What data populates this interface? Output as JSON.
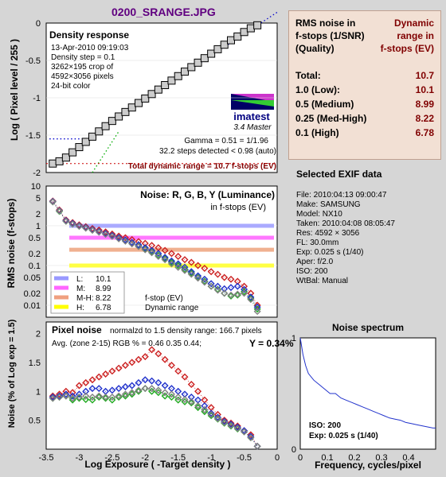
{
  "header": {
    "filename": "0200_SRANGE.JPG"
  },
  "density_panel": {
    "title": "Density response",
    "info_lines": [
      "13-Apr-2010 09:19:03",
      "Density step = 0.1",
      "3262×195 crop of",
      "4592×3056 pixels",
      "24-bit color"
    ],
    "gamma_line": "Gamma = 0.51 = 1/1.96",
    "steps_line": "32.2 steps detected < 0.98 (auto)",
    "total_line": "Total dynamic range = 10.7 f-stops (EV)",
    "logo_text": "imatest",
    "logo_version": "3.4  Master"
  },
  "noise_panel": {
    "title": "Noise: R, G, B, Y (Luminance)",
    "subtitle": "in f-stops (EV)",
    "legend": [
      {
        "key": "L:",
        "value": "10.1",
        "color": "#9999ff"
      },
      {
        "key": "M:",
        "value": "8.99",
        "color": "#ff66ff"
      },
      {
        "key": "M-H:",
        "value": "8.22",
        "color": "#f0a080"
      },
      {
        "key": "H:",
        "value": "6.78",
        "color": "#ffff00"
      }
    ],
    "legend_note1": "f-stop (EV)",
    "legend_note2": "Dynamic range"
  },
  "pixel_panel": {
    "title": "Pixel noise",
    "norm_line": "normalzd to 1.5 density range: 166.7 pixels",
    "avg_line": "Avg. (zone 2-15) RGB % = 0.46  0.35  0.44;",
    "y_line": "Y = 0.34%"
  },
  "spectrum_panel": {
    "title": "Noise spectrum",
    "iso_line": "ISO:   200",
    "exp_line": "Exp:  0.025 s  (1/40)"
  },
  "rms_table": {
    "header_left": [
      "RMS noise in",
      "f-stops (1/SNR)",
      "(Quality)"
    ],
    "header_right": [
      "Dynamic",
      "range in",
      "f-stops (EV)"
    ],
    "rows": [
      {
        "label": "Total:",
        "value": "10.7"
      },
      {
        "label": "1.0   (Low):",
        "value": "10.1"
      },
      {
        "label": "0.5  (Medium)",
        "value": "8.99"
      },
      {
        "label": "0.25 (Med-High)",
        "value": "8.22"
      },
      {
        "label": "0.1   (High)",
        "value": "6.78"
      }
    ]
  },
  "exif": {
    "title": "Selected EXIF data",
    "lines": [
      "File:  2010:04:13 09:00:47",
      "Make:  SAMSUNG",
      "Model: NX10",
      "Taken:  2010:04:08 08:05:47",
      "Res:    4592 × 3056",
      "FL:  30.0mm",
      "Exp:  0.025 s  (1/40)",
      "Aper:  f/2.0",
      "ISO:   200",
      "WtBal: Manual"
    ]
  },
  "chart_data": [
    {
      "type": "line",
      "title": "Density response",
      "ylabel": "Log ( Pixel level / 255 )",
      "xlim": [
        -3.5,
        0
      ],
      "ylim": [
        -2,
        0
      ],
      "yticks": [
        "0",
        "-0.5",
        "-1",
        "-1.5",
        "-2"
      ],
      "series": [
        {
          "x": [
            -3.4,
            -3.3,
            -3.2,
            -3.1,
            -3.0,
            -2.9,
            -2.8,
            -2.7,
            -2.6,
            -2.5,
            -2.4,
            -2.3,
            -2.2,
            -2.1,
            -2.0,
            -1.9,
            -1.8,
            -1.7,
            -1.6,
            -1.5,
            -1.4,
            -1.3,
            -1.2,
            -1.1,
            -1.0,
            -0.9,
            -0.8,
            -0.7,
            -0.6,
            -0.5,
            -0.4,
            -0.3
          ],
          "values": [
            -1.88,
            -1.85,
            -1.8,
            -1.73,
            -1.66,
            -1.59,
            -1.52,
            -1.45,
            -1.38,
            -1.31,
            -1.25,
            -1.19,
            -1.13,
            -1.07,
            -1.01,
            -0.95,
            -0.89,
            -0.83,
            -0.77,
            -0.71,
            -0.65,
            -0.59,
            -0.53,
            -0.47,
            -0.41,
            -0.35,
            -0.29,
            -0.23,
            -0.18,
            -0.12,
            -0.07,
            -0.03
          ]
        }
      ]
    },
    {
      "type": "line",
      "title": "Noise: R, G, B, Y (Luminance)",
      "ylabel": "RMS noise (f-stops)",
      "yscale": "log",
      "ylim": [
        0.005,
        10
      ],
      "yticks": [
        10,
        5,
        2,
        1,
        0.5,
        0.2,
        0.1,
        0.05,
        0.02,
        0.01
      ],
      "ytick_labels": [
        "10",
        "5",
        "2",
        "1",
        "0.5",
        "0.2",
        "0.1",
        "0.05",
        "0.02",
        "0.01"
      ],
      "x": [
        -3.4,
        -3.3,
        -3.2,
        -3.1,
        -3.0,
        -2.9,
        -2.8,
        -2.7,
        -2.6,
        -2.5,
        -2.4,
        -2.3,
        -2.2,
        -2.1,
        -2.0,
        -1.9,
        -1.8,
        -1.7,
        -1.6,
        -1.5,
        -1.4,
        -1.3,
        -1.2,
        -1.1,
        -1.0,
        -0.9,
        -0.8,
        -0.7,
        -0.6,
        -0.5,
        -0.4,
        -0.3
      ],
      "series": [
        {
          "color": "#cc2222",
          "values": [
            4.2,
            2.5,
            1.4,
            1.2,
            1.05,
            0.95,
            0.85,
            0.78,
            0.7,
            0.62,
            0.55,
            0.5,
            0.45,
            0.4,
            0.36,
            0.32,
            0.28,
            0.24,
            0.2,
            0.17,
            0.14,
            0.12,
            0.1,
            0.085,
            0.07,
            0.06,
            0.05,
            0.045,
            0.04,
            0.03,
            0.02,
            0.01
          ]
        },
        {
          "color": "#22aa22",
          "values": [
            4.0,
            2.3,
            1.3,
            1.1,
            0.98,
            0.88,
            0.78,
            0.7,
            0.62,
            0.55,
            0.48,
            0.42,
            0.36,
            0.31,
            0.26,
            0.22,
            0.18,
            0.15,
            0.12,
            0.1,
            0.08,
            0.065,
            0.05,
            0.04,
            0.03,
            0.025,
            0.02,
            0.017,
            0.018,
            0.022,
            0.015,
            0.008
          ]
        },
        {
          "color": "#2233cc",
          "values": [
            4.1,
            2.4,
            1.35,
            1.15,
            1.0,
            0.9,
            0.8,
            0.72,
            0.64,
            0.57,
            0.5,
            0.44,
            0.38,
            0.33,
            0.28,
            0.24,
            0.2,
            0.16,
            0.13,
            0.11,
            0.09,
            0.07,
            0.055,
            0.045,
            0.035,
            0.03,
            0.026,
            0.028,
            0.03,
            0.025,
            0.016,
            0.009
          ]
        },
        {
          "color": "#808080",
          "values": [
            4.0,
            2.35,
            1.3,
            1.1,
            0.97,
            0.87,
            0.77,
            0.69,
            0.61,
            0.54,
            0.47,
            0.41,
            0.35,
            0.3,
            0.25,
            0.21,
            0.17,
            0.14,
            0.11,
            0.09,
            0.075,
            0.06,
            0.048,
            0.038,
            0.03,
            0.024,
            0.02,
            0.018,
            0.019,
            0.02,
            0.014,
            0.007
          ]
        }
      ],
      "thresholds": [
        {
          "value": 1.0,
          "color": "#aaaaff"
        },
        {
          "value": 0.5,
          "color": "#ff77ff"
        },
        {
          "value": 0.25,
          "color": "#f0b090"
        },
        {
          "value": 0.1,
          "color": "#ffff44"
        }
      ]
    },
    {
      "type": "line",
      "title": "Pixel noise",
      "xlabel": "Log Exposure ( -Target density )",
      "ylabel": "Noise (% of Log exp = 1.5)",
      "xlim": [
        -3.5,
        0
      ],
      "ylim": [
        0,
        2.2
      ],
      "xticks": [
        -3.5,
        -3,
        -2.5,
        -2,
        -1.5,
        -1,
        -0.5,
        0
      ],
      "xtick_labels": [
        "-3.5",
        "-3",
        "-2.5",
        "-2",
        "-1.5",
        "-1",
        "-0.5",
        "0"
      ],
      "yticks": [
        0.5,
        1,
        1.5,
        2
      ],
      "ytick_labels": [
        "0.5",
        "1",
        "1.5",
        "2"
      ],
      "x": [
        -3.4,
        -3.3,
        -3.2,
        -3.1,
        -3.0,
        -2.9,
        -2.8,
        -2.7,
        -2.6,
        -2.5,
        -2.4,
        -2.3,
        -2.2,
        -2.1,
        -2.0,
        -1.9,
        -1.8,
        -1.7,
        -1.6,
        -1.5,
        -1.4,
        -1.3,
        -1.2,
        -1.1,
        -1.0,
        -0.9,
        -0.8,
        -0.7,
        -0.6,
        -0.5,
        -0.4,
        -0.3
      ],
      "series": [
        {
          "color": "#cc2222",
          "values": [
            0.92,
            0.95,
            1.0,
            0.98,
            1.1,
            1.15,
            1.2,
            1.25,
            1.3,
            1.35,
            1.4,
            1.45,
            1.5,
            1.55,
            1.6,
            1.72,
            1.65,
            1.55,
            1.45,
            1.35,
            1.25,
            1.12,
            1.0,
            0.85,
            0.72,
            0.6,
            0.5,
            0.45,
            0.4,
            0.32,
            0.25,
            0.05
          ]
        },
        {
          "color": "#22aa22",
          "values": [
            0.88,
            0.9,
            0.92,
            0.85,
            0.88,
            0.86,
            0.85,
            0.9,
            0.88,
            0.85,
            0.9,
            0.92,
            0.95,
            1.0,
            1.05,
            1.0,
            0.98,
            0.92,
            0.9,
            0.85,
            0.82,
            0.8,
            0.72,
            0.65,
            0.58,
            0.52,
            0.45,
            0.4,
            0.35,
            0.3,
            0.2,
            0.05
          ]
        },
        {
          "color": "#2233cc",
          "values": [
            0.9,
            0.92,
            0.95,
            0.92,
            0.95,
            1.0,
            1.05,
            1.05,
            1.0,
            1.02,
            1.05,
            1.08,
            1.1,
            1.15,
            1.2,
            1.18,
            1.15,
            1.1,
            1.05,
            1.0,
            0.95,
            0.9,
            0.85,
            0.75,
            0.62,
            0.55,
            0.48,
            0.43,
            0.38,
            0.32,
            0.22,
            0.05
          ]
        },
        {
          "color": "#808080",
          "values": [
            0.88,
            0.9,
            0.92,
            0.88,
            0.9,
            0.92,
            0.9,
            0.92,
            0.9,
            0.9,
            0.92,
            0.95,
            0.98,
            1.02,
            1.05,
            1.05,
            1.02,
            0.98,
            0.95,
            0.9,
            0.86,
            0.82,
            0.75,
            0.68,
            0.6,
            0.53,
            0.46,
            0.41,
            0.36,
            0.3,
            0.2,
            0.05
          ]
        }
      ]
    },
    {
      "type": "line",
      "title": "Noise spectrum",
      "xlabel": "Frequency, cycles/pixel",
      "xlim": [
        0,
        0.5
      ],
      "ylim": [
        0,
        1
      ],
      "xticks": [
        0,
        0.1,
        0.2,
        0.3,
        0.4
      ],
      "xtick_labels": [
        "0",
        "0.1",
        "0.2",
        "0.3",
        "0.4"
      ],
      "yticks": [
        0,
        1
      ],
      "ytick_labels": [
        "0",
        "1"
      ],
      "series": [
        {
          "color": "#2233cc",
          "x": [
            0,
            0.01,
            0.02,
            0.03,
            0.05,
            0.07,
            0.09,
            0.11,
            0.13,
            0.15,
            0.17,
            0.19,
            0.21,
            0.23,
            0.25,
            0.27,
            0.29,
            0.31,
            0.33,
            0.35,
            0.37,
            0.39,
            0.41,
            0.43,
            0.45,
            0.47,
            0.49,
            0.5
          ],
          "values": [
            1.0,
            0.85,
            0.75,
            0.68,
            0.62,
            0.58,
            0.54,
            0.5,
            0.5,
            0.46,
            0.44,
            0.42,
            0.4,
            0.38,
            0.36,
            0.34,
            0.32,
            0.3,
            0.28,
            0.27,
            0.26,
            0.24,
            0.23,
            0.22,
            0.21,
            0.2,
            0.19,
            0.19
          ]
        }
      ]
    }
  ]
}
